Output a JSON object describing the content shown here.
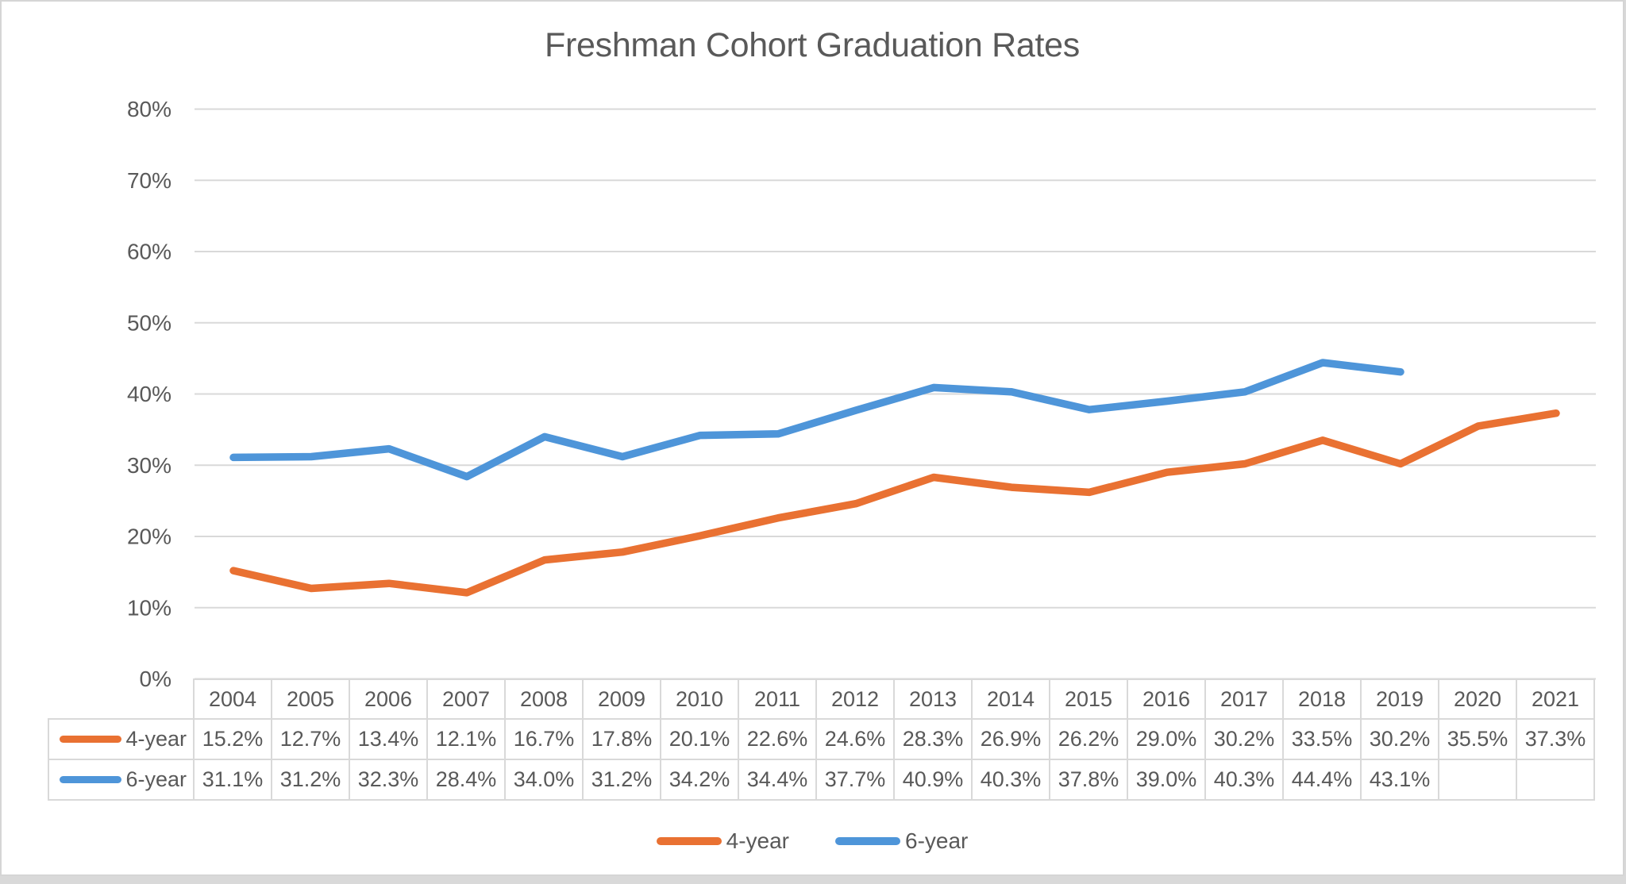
{
  "chart_data": {
    "type": "line",
    "title": "Freshman Cohort Graduation Rates",
    "categories": [
      "2004",
      "2005",
      "2006",
      "2007",
      "2008",
      "2009",
      "2010",
      "2011",
      "2012",
      "2013",
      "2014",
      "2015",
      "2016",
      "2017",
      "2018",
      "2019",
      "2020",
      "2021"
    ],
    "series": [
      {
        "name": "4-year",
        "color": "#E97132",
        "values": [
          15.2,
          12.7,
          13.4,
          12.1,
          16.7,
          17.8,
          20.1,
          22.6,
          24.6,
          28.3,
          26.9,
          26.2,
          29.0,
          30.2,
          33.5,
          30.2,
          35.5,
          37.3
        ]
      },
      {
        "name": "6-year",
        "color": "#4E95D9",
        "values": [
          31.1,
          31.2,
          32.3,
          28.4,
          34.0,
          31.2,
          34.2,
          34.4,
          37.7,
          40.9,
          40.3,
          37.8,
          39.0,
          40.3,
          44.4,
          43.1,
          null,
          null
        ]
      }
    ],
    "xlabel": "",
    "ylabel": "",
    "ylim": [
      0,
      80
    ],
    "ytick_step": 10,
    "ytick_suffix": "%",
    "value_suffix": "%",
    "value_decimals": 1,
    "grid": true,
    "legend_position": "bottom",
    "show_data_table": true
  },
  "colors": {
    "text": "#595959",
    "gridline": "#D9D9D9",
    "table_border": "#D9D9D9",
    "chart_background": "#FFFFFF",
    "page_background": "#D9D9D9"
  }
}
